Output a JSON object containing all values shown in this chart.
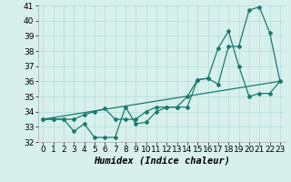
{
  "xlabel": "Humidex (Indice chaleur)",
  "x": [
    0,
    1,
    2,
    3,
    4,
    5,
    6,
    7,
    8,
    9,
    10,
    11,
    12,
    13,
    14,
    15,
    16,
    17,
    18,
    19,
    20,
    21,
    22,
    23
  ],
  "line_zigzag": [
    33.5,
    33.5,
    33.5,
    32.7,
    33.2,
    32.3,
    32.3,
    32.3,
    34.3,
    33.2,
    33.3,
    34.0,
    34.3,
    34.3,
    35.0,
    36.1,
    36.2,
    35.8,
    38.3,
    38.3,
    40.7,
    40.9,
    39.2,
    36.0
  ],
  "line_smooth": [
    33.5,
    33.5,
    33.5,
    33.5,
    33.8,
    34.0,
    34.2,
    33.5,
    33.5,
    33.5,
    34.0,
    34.3,
    34.3,
    34.3,
    34.3,
    36.1,
    36.2,
    38.2,
    39.3,
    37.0,
    35.0,
    35.2,
    35.2,
    36.0
  ],
  "trend_x": [
    0,
    23
  ],
  "trend_y": [
    33.5,
    36.0
  ],
  "line_color": "#1a7a6e",
  "bg_color": "#d7f0ec",
  "grid_color": "#b5ddd8",
  "ylim": [
    32,
    41
  ],
  "xlim": [
    -0.5,
    23.5
  ],
  "yticks": [
    32,
    33,
    34,
    35,
    36,
    37,
    38,
    39,
    40,
    41
  ],
  "xticks": [
    0,
    1,
    2,
    3,
    4,
    5,
    6,
    7,
    8,
    9,
    10,
    11,
    12,
    13,
    14,
    15,
    16,
    17,
    18,
    19,
    20,
    21,
    22,
    23
  ],
  "tick_fontsize": 6.5,
  "xlabel_fontsize": 7.5
}
